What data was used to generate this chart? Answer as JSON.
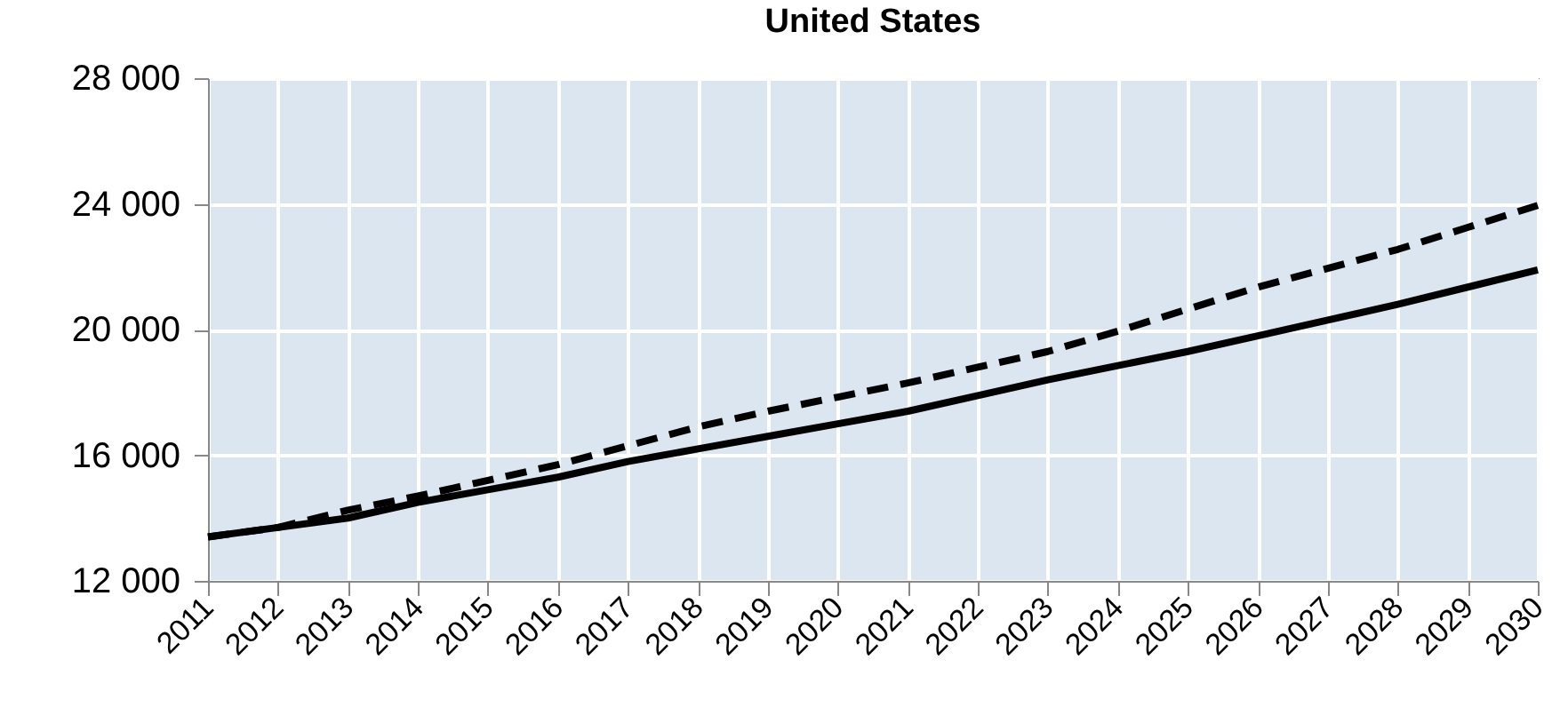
{
  "chart_data": {
    "type": "line",
    "title": "United States",
    "categories": [
      "2011",
      "2012",
      "2013",
      "2014",
      "2015",
      "2016",
      "2017",
      "2018",
      "2019",
      "2020",
      "2021",
      "2022",
      "2023",
      "2024",
      "2025",
      "2026",
      "2027",
      "2028",
      "2029",
      "2030"
    ],
    "series": [
      {
        "color": "#000000",
        "line_style": "solid",
        "values": [
          13400,
          13700,
          14000,
          14500,
          14900,
          15300,
          15800,
          16200,
          16600,
          17000,
          17400,
          17900,
          18400,
          18850,
          19300,
          19800,
          20300,
          20800,
          21350,
          21900
        ]
      },
      {
        "color": "#000000",
        "line_style": "dashed",
        "values": [
          13400,
          13700,
          14250,
          14700,
          15200,
          15700,
          16300,
          16900,
          17400,
          17850,
          18300,
          18800,
          19300,
          19950,
          20650,
          21350,
          21950,
          22550,
          23250,
          23950
        ]
      }
    ],
    "ylim": [
      12000,
      28000
    ],
    "yticks": [
      {
        "value": 12000,
        "label": "12 000"
      },
      {
        "value": 16000,
        "label": "16 000"
      },
      {
        "value": 20000,
        "label": "20 000"
      },
      {
        "value": 24000,
        "label": "24 000"
      },
      {
        "value": 28000,
        "label": "28 000"
      }
    ],
    "grid": true,
    "marker": "none"
  }
}
